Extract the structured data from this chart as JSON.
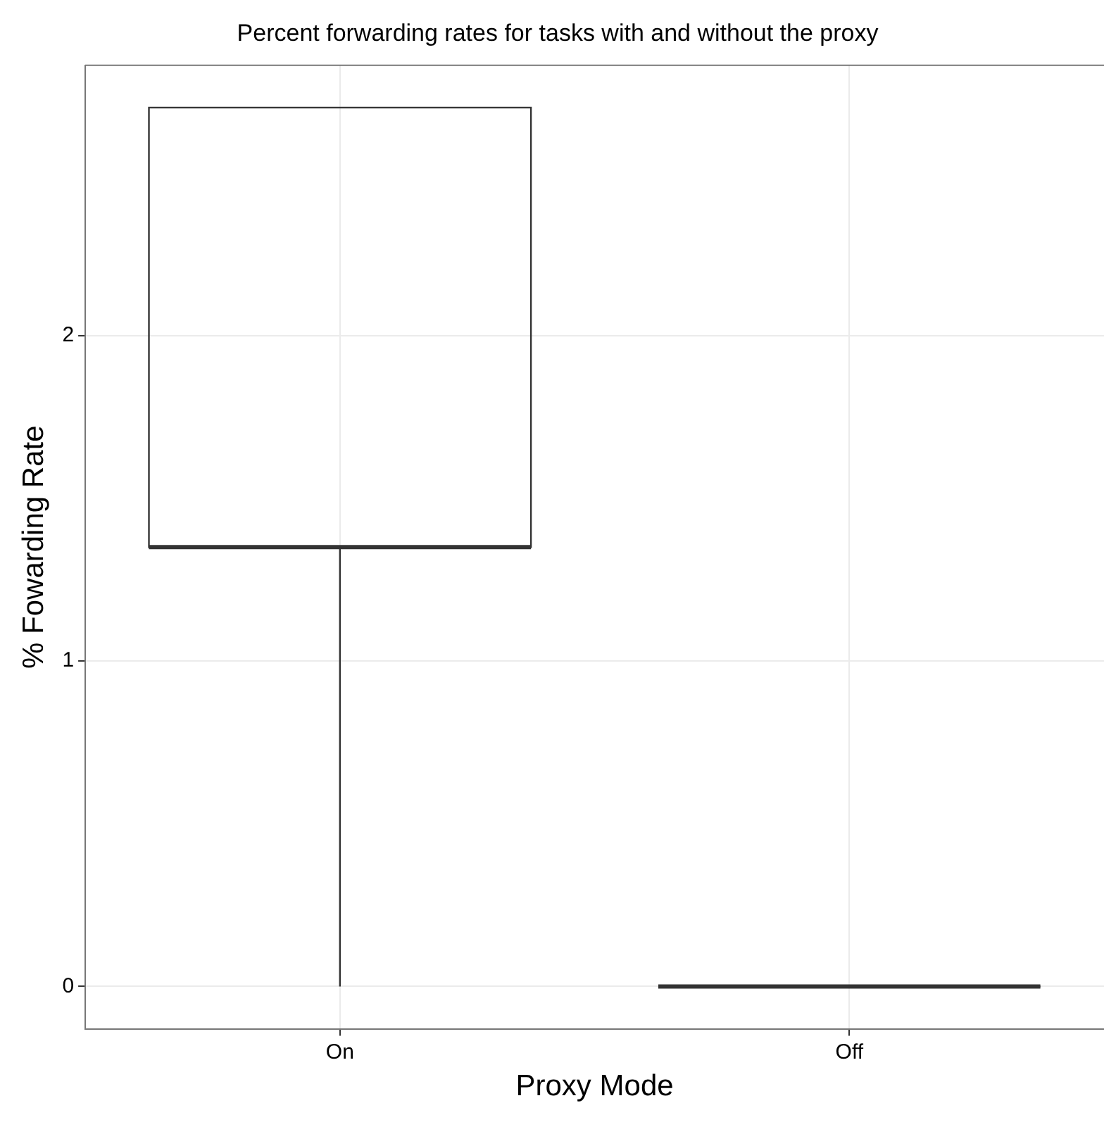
{
  "chart_data": {
    "type": "box",
    "title": "Percent forwarding rates for tasks with and without the proxy",
    "xlabel": "Proxy Mode",
    "ylabel": "% Fowarding Rate",
    "categories": [
      "On",
      "Off"
    ],
    "boxes": [
      {
        "low": 0,
        "q1": 1.35,
        "median": 1.35,
        "q3": 2.7,
        "high": 2.7
      },
      {
        "low": 0,
        "q1": 0,
        "median": 0,
        "q3": 0,
        "high": 0
      }
    ],
    "ylim": [
      -0.13,
      2.83
    ],
    "yticks": [
      0,
      1,
      2
    ],
    "grid": true
  }
}
